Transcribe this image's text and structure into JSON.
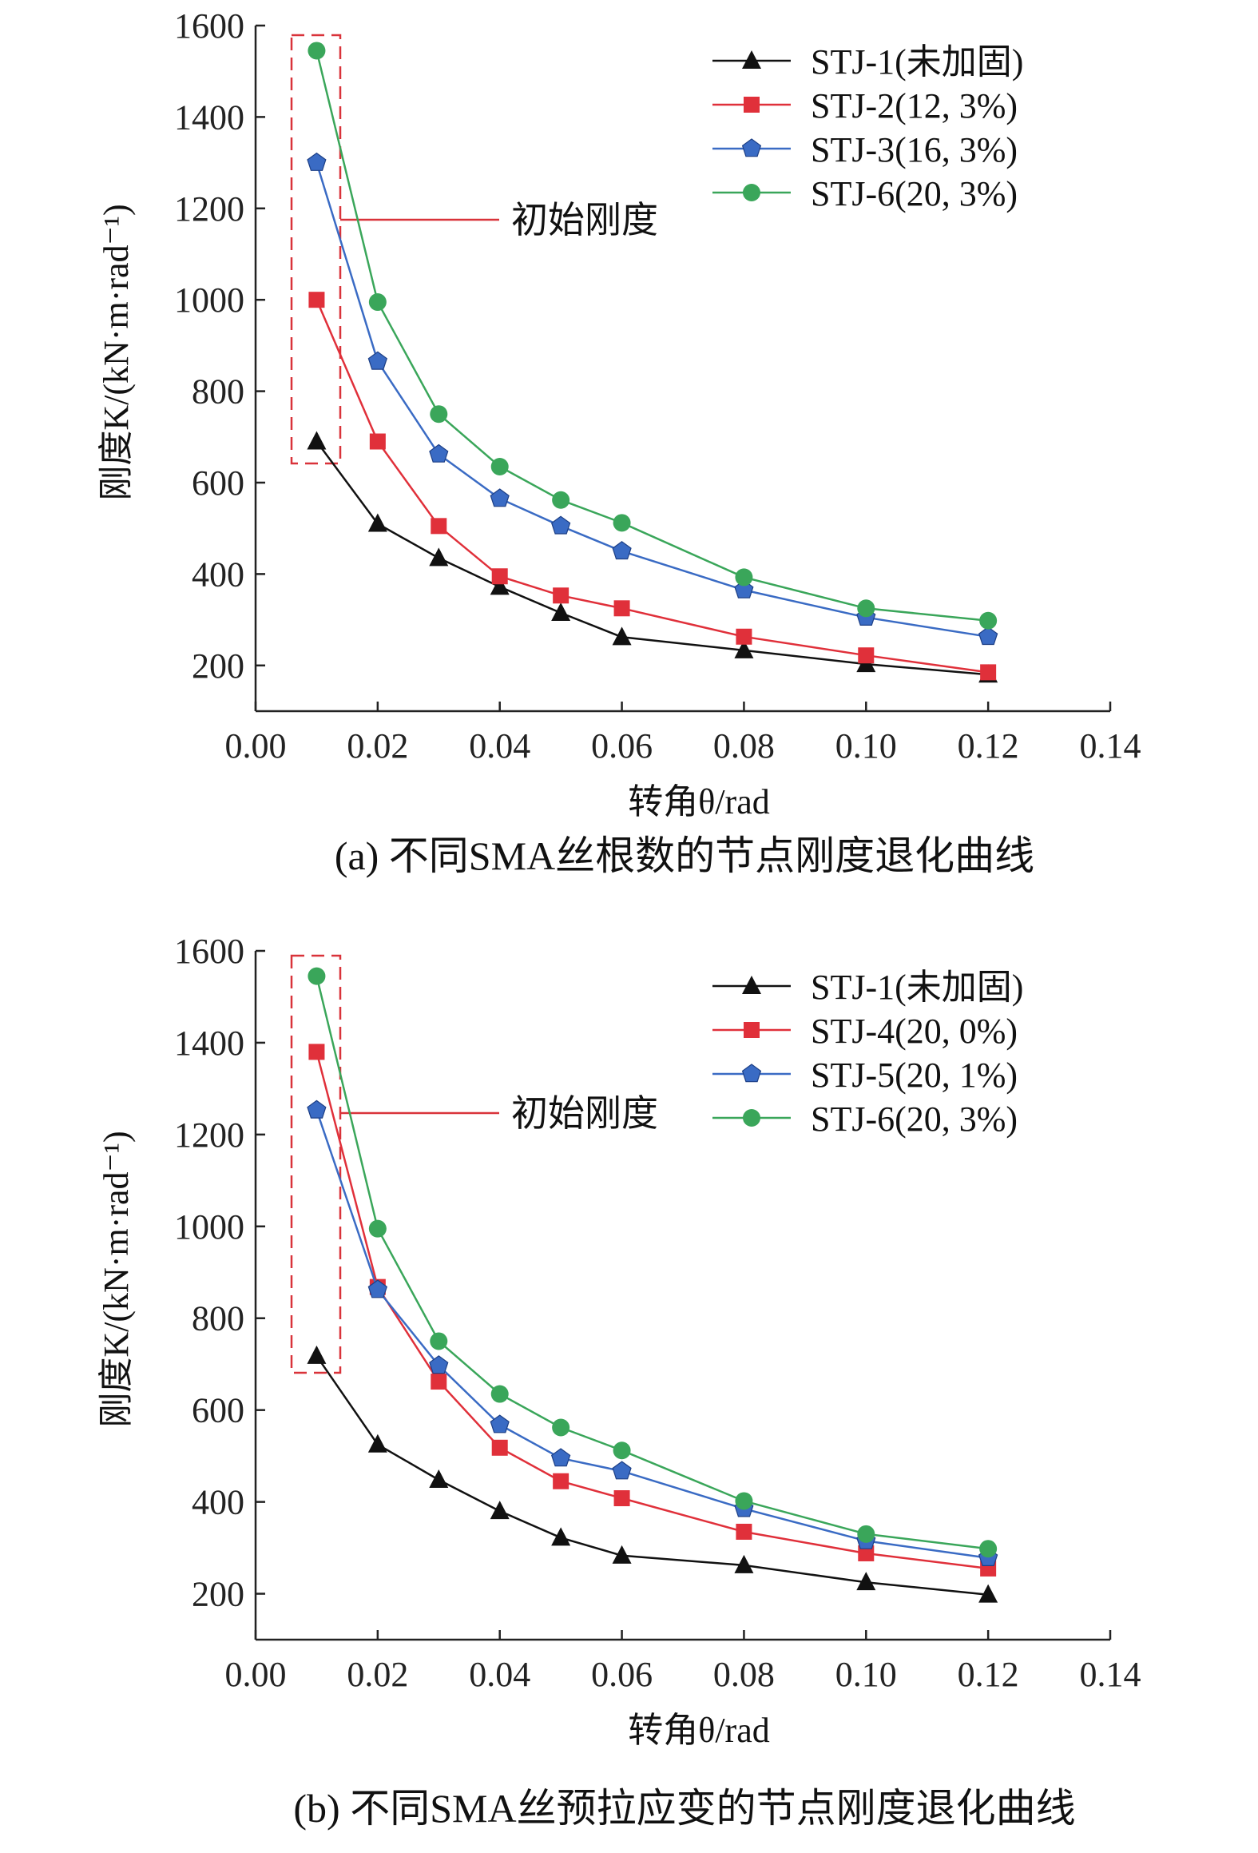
{
  "chart_data": [
    {
      "type": "line",
      "caption": "(a) 不同SMA丝根数的节点刚度退化曲线",
      "xlabel": "转角θ/rad",
      "ylabel": "刚度K/(kN·m·rad⁻¹)",
      "xlim": [
        0.0,
        0.14
      ],
      "ylim": [
        100,
        1600
      ],
      "xticks": [
        "0.00",
        "0.02",
        "0.04",
        "0.06",
        "0.08",
        "0.10",
        "0.12",
        "0.14"
      ],
      "yticks": [
        "200",
        "400",
        "600",
        "800",
        "1000",
        "1200",
        "1400",
        "1600"
      ],
      "annotation": "初始刚度",
      "legend_position": "top-right",
      "x": [
        0.01,
        0.02,
        0.03,
        0.04,
        0.05,
        0.06,
        0.08,
        0.1,
        0.12
      ],
      "series": [
        {
          "name": "STJ-1(未加固)",
          "marker": "triangle",
          "color": "#111111",
          "values": [
            690,
            510,
            435,
            372,
            315,
            262,
            233,
            203,
            180
          ]
        },
        {
          "name": "STJ-2(12, 3%)",
          "marker": "square",
          "color": "#e0303a",
          "values": [
            1000,
            690,
            505,
            395,
            353,
            325,
            263,
            222,
            185
          ]
        },
        {
          "name": "STJ-3(16, 3%)",
          "marker": "pentagon",
          "color": "#3a6bc4",
          "values": [
            1300,
            865,
            662,
            565,
            505,
            450,
            365,
            305,
            263
          ]
        },
        {
          "name": "STJ-6(20, 3%)",
          "marker": "circle",
          "color": "#3aa65a",
          "values": [
            1545,
            995,
            750,
            635,
            562,
            512,
            393,
            325,
            298
          ]
        }
      ]
    },
    {
      "type": "line",
      "caption": "(b) 不同SMA丝预拉应变的节点刚度退化曲线",
      "xlabel": "转角θ/rad",
      "ylabel": "刚度K/(kN·m·rad⁻¹)",
      "xlim": [
        0.0,
        0.14
      ],
      "ylim": [
        100,
        1600
      ],
      "xticks": [
        "0.00",
        "0.02",
        "0.04",
        "0.06",
        "0.08",
        "0.10",
        "0.12",
        "0.14"
      ],
      "yticks": [
        "200",
        "400",
        "600",
        "800",
        "1000",
        "1200",
        "1400",
        "1600"
      ],
      "annotation": "初始刚度",
      "legend_position": "top-right",
      "x": [
        0.01,
        0.02,
        0.03,
        0.04,
        0.05,
        0.06,
        0.08,
        0.1,
        0.12
      ],
      "series": [
        {
          "name": "STJ-1(未加固)",
          "marker": "triangle",
          "color": "#111111",
          "values": [
            718,
            525,
            448,
            380,
            322,
            283,
            262,
            225,
            198
          ]
        },
        {
          "name": "STJ-4(20, 0%)",
          "marker": "square",
          "color": "#e0303a",
          "values": [
            1380,
            868,
            662,
            518,
            445,
            408,
            335,
            288,
            255
          ]
        },
        {
          "name": "STJ-5(20, 1%)",
          "marker": "pentagon",
          "color": "#3a6bc4",
          "values": [
            1253,
            862,
            697,
            568,
            495,
            467,
            385,
            315,
            278
          ]
        },
        {
          "name": "STJ-6(20, 3%)",
          "marker": "circle",
          "color": "#3aa65a",
          "values": [
            1545,
            995,
            750,
            635,
            562,
            512,
            402,
            330,
            298
          ]
        }
      ]
    }
  ]
}
